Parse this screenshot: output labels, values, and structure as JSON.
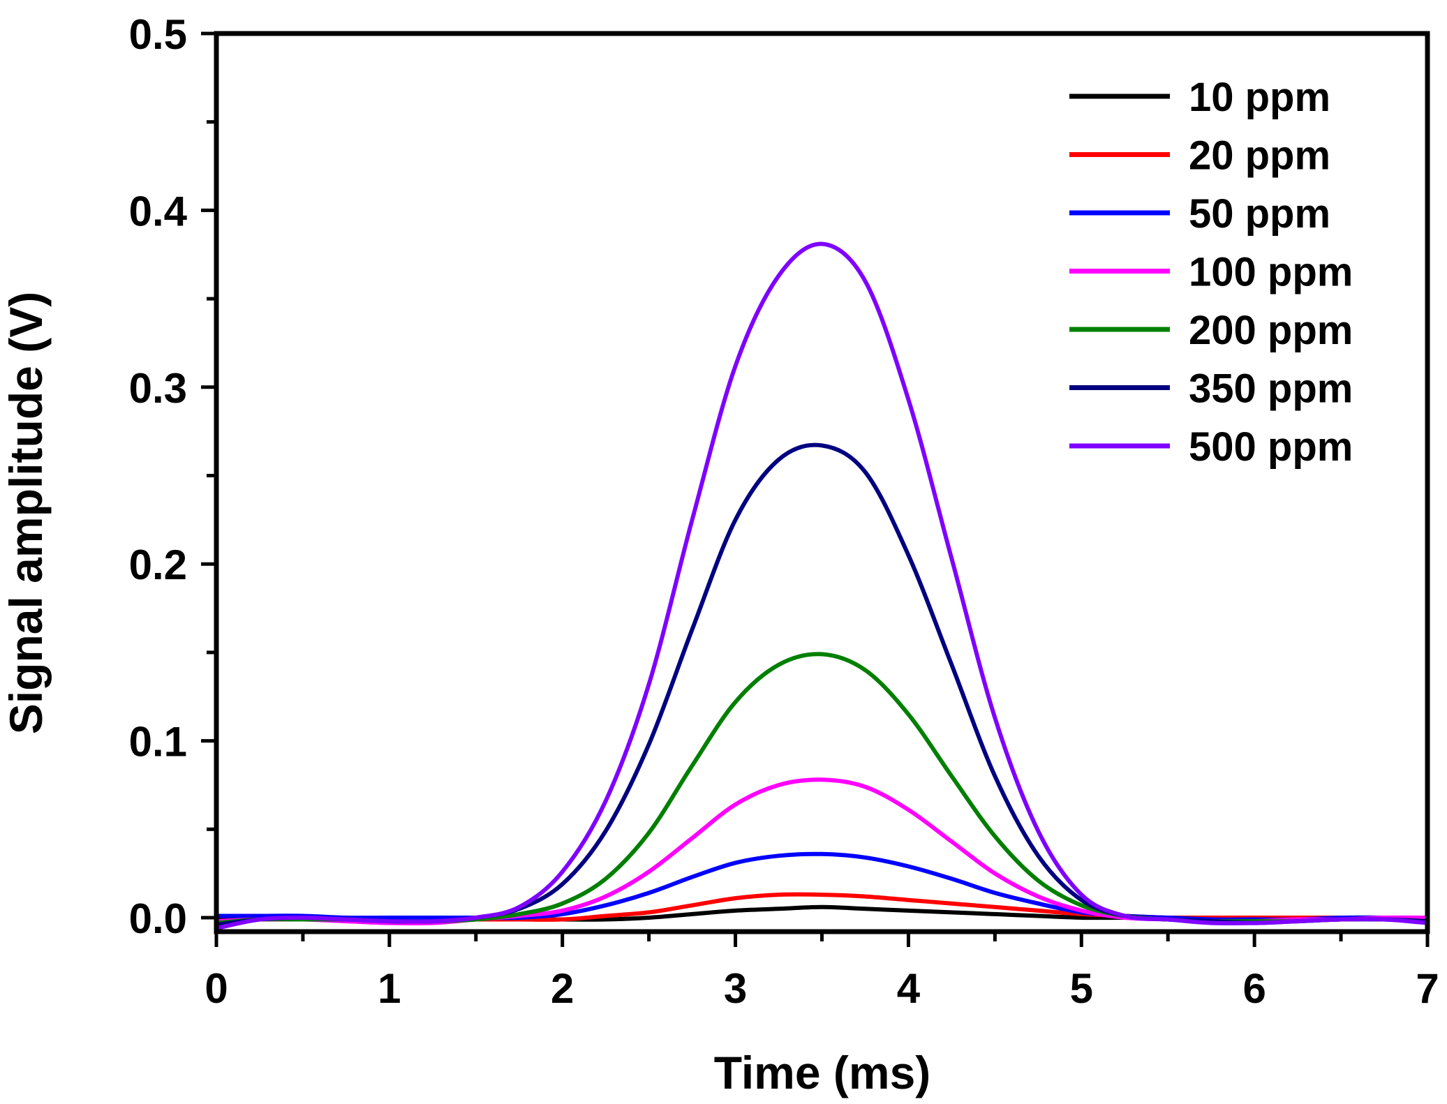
{
  "chart_data": {
    "type": "line",
    "title": "",
    "xlabel": "Time (ms)",
    "ylabel": "Signal amplitude (V)",
    "xlim": [
      0,
      7
    ],
    "ylim": [
      -0.01,
      0.5
    ],
    "xticks": [
      0,
      1,
      2,
      3,
      4,
      5,
      6,
      7
    ],
    "xtick_labels": [
      "0",
      "1",
      "2",
      "3",
      "4",
      "5",
      "6",
      "7"
    ],
    "yticks": [
      0.0,
      0.1,
      0.2,
      0.3,
      0.4,
      0.5
    ],
    "ytick_labels": [
      "0.0",
      "0.1",
      "0.2",
      "0.3",
      "0.4",
      "0.5"
    ],
    "grid": false,
    "legend_position": "top-right",
    "x": [
      0.0,
      0.25,
      0.5,
      0.75,
      1.0,
      1.25,
      1.5,
      1.75,
      2.0,
      2.25,
      2.5,
      2.75,
      3.0,
      3.25,
      3.5,
      3.75,
      4.0,
      4.25,
      4.5,
      4.75,
      5.0,
      5.25,
      5.5,
      5.75,
      6.0,
      6.25,
      6.5,
      6.75,
      7.0
    ],
    "series": [
      {
        "name": "10 ppm",
        "color": "#000000",
        "values": [
          -0.001,
          -0.001,
          -0.001,
          -0.001,
          -0.001,
          -0.001,
          -0.001,
          -0.001,
          -0.001,
          -0.001,
          0.0,
          0.002,
          0.004,
          0.005,
          0.006,
          0.005,
          0.004,
          0.003,
          0.002,
          0.001,
          0.0,
          0.0,
          0.0,
          0.0,
          0.0,
          0.0,
          0.0,
          0.0,
          -0.001
        ]
      },
      {
        "name": "20 ppm",
        "color": "#ff0000",
        "values": [
          -0.002,
          -0.001,
          -0.001,
          -0.001,
          -0.001,
          -0.001,
          -0.001,
          -0.001,
          -0.001,
          0.001,
          0.003,
          0.007,
          0.011,
          0.013,
          0.013,
          0.012,
          0.01,
          0.008,
          0.006,
          0.004,
          0.002,
          0.001,
          0.0,
          0.0,
          0.0,
          0.0,
          0.0,
          0.0,
          0.0
        ]
      },
      {
        "name": "50 ppm",
        "color": "#0000ff",
        "values": [
          0.001,
          0.001,
          0.001,
          0.0,
          0.0,
          0.0,
          0.0,
          0.0,
          0.002,
          0.007,
          0.014,
          0.023,
          0.031,
          0.035,
          0.036,
          0.034,
          0.029,
          0.022,
          0.014,
          0.008,
          0.003,
          0.001,
          0.0,
          -0.001,
          -0.001,
          -0.001,
          0.0,
          0.0,
          0.0
        ]
      },
      {
        "name": "100 ppm",
        "color": "#ff00ff",
        "values": [
          -0.002,
          -0.001,
          -0.001,
          -0.002,
          -0.003,
          -0.003,
          -0.001,
          0.001,
          0.004,
          0.012,
          0.026,
          0.045,
          0.064,
          0.075,
          0.078,
          0.074,
          0.061,
          0.043,
          0.025,
          0.012,
          0.004,
          0.0,
          -0.001,
          -0.002,
          -0.002,
          -0.001,
          -0.001,
          0.0,
          0.0
        ]
      },
      {
        "name": "200 ppm",
        "color": "#007f00",
        "values": [
          -0.003,
          -0.001,
          -0.001,
          -0.001,
          -0.002,
          -0.002,
          -0.001,
          0.002,
          0.008,
          0.022,
          0.048,
          0.086,
          0.122,
          0.143,
          0.149,
          0.14,
          0.115,
          0.08,
          0.046,
          0.021,
          0.007,
          0.001,
          -0.001,
          -0.002,
          -0.002,
          -0.002,
          -0.001,
          -0.001,
          -0.002
        ]
      },
      {
        "name": "350 ppm",
        "color": "#000080",
        "values": [
          -0.004,
          -0.001,
          0.0,
          -0.001,
          -0.002,
          -0.002,
          0.0,
          0.005,
          0.019,
          0.049,
          0.098,
          0.163,
          0.225,
          0.259,
          0.267,
          0.252,
          0.205,
          0.143,
          0.08,
          0.035,
          0.01,
          0.001,
          -0.001,
          -0.002,
          -0.003,
          -0.002,
          -0.001,
          -0.001,
          -0.002
        ]
      },
      {
        "name": "500 ppm",
        "color": "#7f00ff",
        "values": [
          -0.006,
          -0.001,
          0.0,
          -0.001,
          -0.002,
          -0.002,
          0.0,
          0.006,
          0.026,
          0.066,
          0.132,
          0.225,
          0.312,
          0.363,
          0.381,
          0.36,
          0.293,
          0.203,
          0.113,
          0.049,
          0.013,
          0.001,
          -0.001,
          -0.003,
          -0.003,
          -0.002,
          -0.001,
          -0.001,
          -0.003
        ]
      }
    ]
  }
}
